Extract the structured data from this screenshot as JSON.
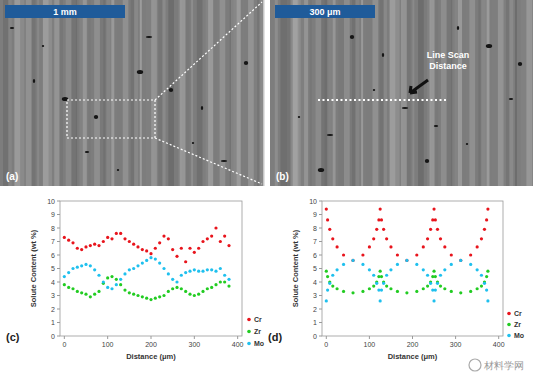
{
  "panels": [
    {
      "label": "(a)",
      "scale_bar": "1 mm"
    },
    {
      "label": "(b)",
      "scale_bar": "300 μm",
      "annotation": "Line Scan Distance"
    }
  ],
  "watermark": "材料学网",
  "chart_data": [
    {
      "type": "scatter",
      "title": "(c)",
      "x_label": "Distance (μm)",
      "y_label": "Solute Content (wt %)",
      "x": [
        0,
        10,
        20,
        30,
        40,
        50,
        60,
        70,
        80,
        90,
        100,
        110,
        120,
        130,
        140,
        150,
        160,
        170,
        180,
        190,
        200,
        210,
        220,
        230,
        240,
        250,
        260,
        270,
        280,
        290,
        300,
        310,
        320,
        330,
        340,
        350,
        360,
        370,
        380
      ],
      "series": [
        {
          "name": "Cr",
          "color": "#e8141c",
          "marker": "circle",
          "values": [
            7.3,
            7.1,
            6.9,
            6.5,
            6.4,
            6.6,
            6.7,
            6.8,
            6.7,
            7.0,
            7.3,
            7.2,
            7.6,
            7.6,
            7.2,
            7.0,
            6.8,
            6.6,
            6.4,
            6.3,
            6.1,
            6.5,
            6.9,
            7.4,
            7.2,
            6.4,
            5.9,
            6.5,
            5.5,
            6.5,
            6.2,
            6.5,
            7.0,
            7.2,
            7.4,
            8.0,
            7.0,
            7.4,
            6.7
          ]
        },
        {
          "name": "Zr",
          "color": "#22cc22",
          "marker": "circle",
          "values": [
            3.8,
            3.6,
            3.5,
            3.3,
            3.2,
            3.1,
            2.9,
            3.1,
            3.3,
            3.9,
            4.3,
            4.4,
            4.2,
            3.8,
            3.4,
            3.2,
            3.1,
            3.0,
            2.9,
            2.8,
            2.7,
            2.8,
            2.9,
            3.0,
            3.3,
            3.5,
            3.6,
            3.5,
            3.3,
            3.1,
            3.0,
            3.1,
            3.3,
            3.5,
            3.6,
            3.8,
            4.0,
            4.0,
            3.7
          ]
        },
        {
          "name": "Mo",
          "color": "#1fc0ee",
          "marker": "circle",
          "values": [
            4.4,
            4.7,
            5.0,
            5.1,
            5.2,
            5.3,
            5.2,
            4.9,
            4.5,
            4.0,
            3.6,
            3.5,
            3.8,
            4.2,
            4.6,
            4.9,
            5.0,
            5.2,
            5.4,
            5.6,
            5.8,
            5.7,
            5.4,
            5.0,
            4.6,
            4.2,
            4.0,
            4.5,
            4.7,
            4.8,
            4.9,
            4.8,
            4.8,
            4.9,
            4.9,
            4.8,
            5.0,
            4.5,
            4.2
          ]
        }
      ],
      "xlim": [
        -10,
        410
      ],
      "xticks": [
        0,
        100,
        200,
        300,
        400
      ],
      "ylim": [
        0,
        10
      ],
      "yticks": [
        0,
        1,
        2,
        3,
        4,
        5,
        6,
        7,
        8,
        9,
        10
      ],
      "legend": "right",
      "grid": false
    },
    {
      "type": "scatter",
      "title": "(d)",
      "x_label": "Distance (μm)",
      "y_label": "Solute Content (wt %)",
      "x": [
        0,
        3,
        8,
        15,
        25,
        40,
        62,
        85,
        100,
        110,
        117,
        122,
        125,
        128,
        133,
        140,
        150,
        165,
        187,
        210,
        225,
        235,
        242,
        247,
        250,
        253,
        258,
        265,
        275,
        290,
        312,
        335,
        350,
        360,
        367,
        372,
        375
      ],
      "series": [
        {
          "name": "Cr",
          "color": "#e8141c",
          "marker": "circle",
          "values": [
            9.4,
            8.6,
            7.9,
            7.2,
            6.6,
            6.0,
            5.6,
            6.0,
            6.6,
            7.2,
            7.9,
            8.6,
            9.4,
            8.6,
            7.9,
            7.2,
            6.6,
            6.0,
            5.6,
            6.0,
            6.6,
            7.2,
            7.9,
            8.6,
            9.4,
            8.6,
            7.9,
            7.2,
            6.6,
            6.0,
            5.6,
            6.0,
            6.6,
            7.2,
            7.9,
            8.6,
            9.4
          ]
        },
        {
          "name": "Zr",
          "color": "#22cc22",
          "marker": "circle",
          "values": [
            4.8,
            4.4,
            4.0,
            3.7,
            3.5,
            3.3,
            3.2,
            3.3,
            3.5,
            3.7,
            4.0,
            4.4,
            4.8,
            4.4,
            4.0,
            3.7,
            3.5,
            3.3,
            3.2,
            3.3,
            3.5,
            3.7,
            4.0,
            4.4,
            4.8,
            4.4,
            4.0,
            3.7,
            3.5,
            3.3,
            3.2,
            3.3,
            3.5,
            3.7,
            4.0,
            4.4,
            4.8
          ]
        },
        {
          "name": "Mo",
          "color": "#1fc0ee",
          "marker": "circle",
          "values": [
            2.6,
            3.4,
            3.9,
            4.5,
            4.9,
            5.3,
            5.6,
            5.3,
            4.9,
            4.5,
            3.9,
            3.4,
            2.6,
            3.4,
            3.9,
            4.5,
            4.9,
            5.3,
            5.6,
            5.3,
            4.9,
            4.5,
            3.9,
            3.4,
            2.6,
            3.4,
            3.9,
            4.5,
            4.9,
            5.3,
            5.6,
            5.3,
            4.9,
            4.5,
            3.9,
            3.4,
            2.6
          ]
        }
      ],
      "xlim": [
        -10,
        410
      ],
      "xticks": [
        0,
        100,
        200,
        300,
        400
      ],
      "ylim": [
        0,
        10
      ],
      "yticks": [
        0,
        1,
        2,
        3,
        4,
        5,
        6,
        7,
        8,
        9,
        10
      ],
      "legend": "right",
      "grid": false
    }
  ]
}
